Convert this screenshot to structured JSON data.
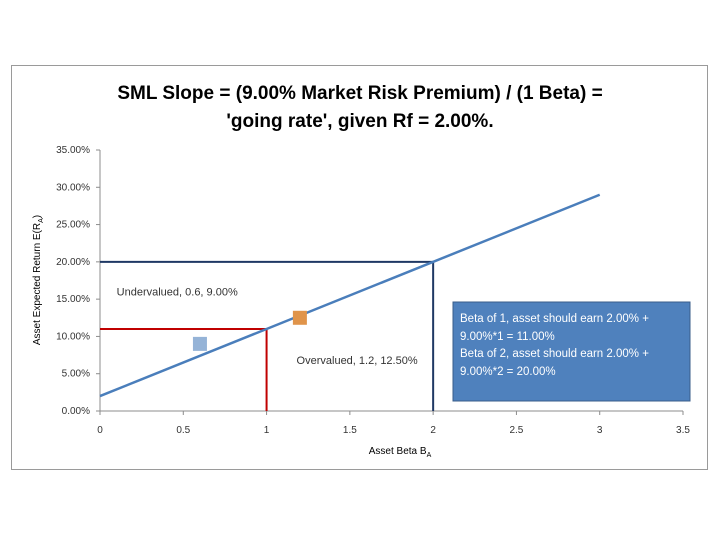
{
  "chart_data": {
    "type": "line",
    "title_lines": [
      "SML Slope = (9.00% Market Risk Premium) / (1 Beta) =",
      "'going rate', given Rf = 2.00%."
    ],
    "xlabel": "Asset Beta B",
    "xlabel_sub": "A",
    "ylabel": "Asset Expected Return E(R",
    "ylabel_sub": "A",
    "ylabel_end": ")",
    "xlim": [
      0,
      3.5
    ],
    "ylim": [
      0,
      35
    ],
    "x_ticks": [
      0,
      0.5,
      1,
      1.5,
      2,
      2.5,
      3,
      3.5
    ],
    "x_tick_labels": [
      "0",
      "0.5",
      "1",
      "1.5",
      "2",
      "2.5",
      "3",
      "3.5"
    ],
    "y_ticks": [
      0,
      5,
      10,
      15,
      20,
      25,
      30,
      35
    ],
    "y_tick_labels": [
      "0.00%",
      "5.00%",
      "10.00%",
      "15.00%",
      "20.00%",
      "25.00%",
      "30.00%",
      "35.00%"
    ],
    "sml_line": {
      "x": [
        0,
        3
      ],
      "y": [
        2,
        29
      ],
      "color": "#4a7ebb"
    },
    "guides": [
      {
        "x": 1,
        "y": 11,
        "color": "#c00000"
      },
      {
        "x": 2,
        "y": 20,
        "color": "#1f3864"
      }
    ],
    "points": [
      {
        "x": 0.6,
        "y": 9,
        "color": "#95b3d7"
      },
      {
        "x": 1.2,
        "y": 12.5,
        "color": "#e0944a"
      }
    ],
    "annotations": [
      {
        "text": "Undervalued, 0.6, 9.00%",
        "x": 0.1,
        "y": 15.5
      },
      {
        "text": "Overvalued, 1.2, 12.50%",
        "x": 1.18,
        "y": 6.3
      }
    ],
    "info_box": {
      "lines": [
        "Beta of 1, asset should earn 2.00% +",
        "9.00%*1 = 11.00%",
        "Beta of 2, asset should earn 2.00% +",
        "9.00%*2 = 20.00%"
      ],
      "fill": "#4f81bd"
    }
  }
}
